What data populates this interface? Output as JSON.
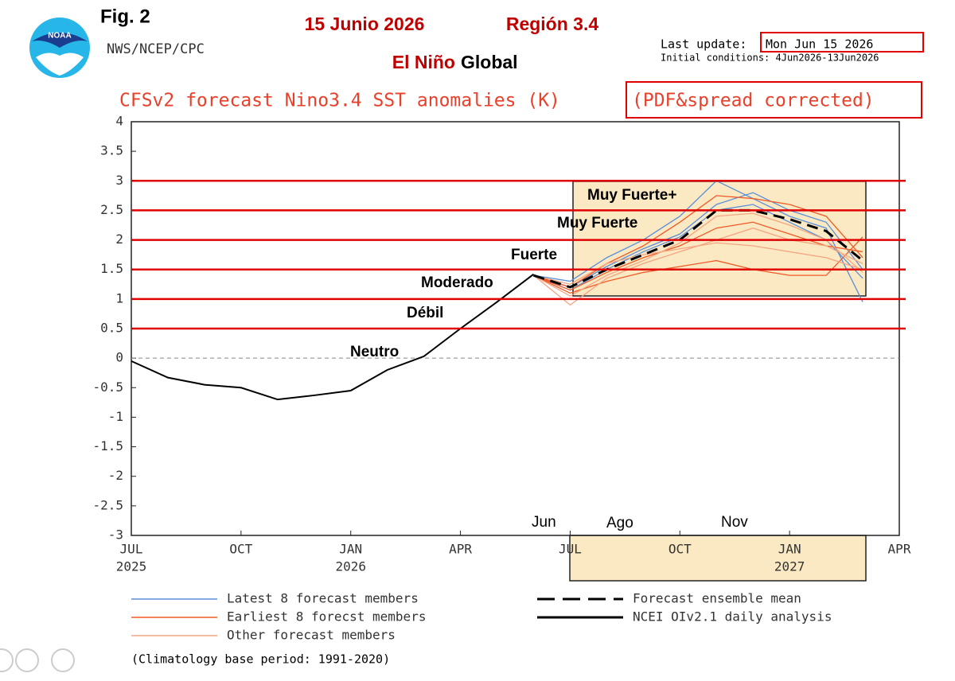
{
  "chart_data": {
    "type": "line",
    "fig_label": "Fig. 2",
    "agency": "NWS/NCEP/CPC",
    "date_heading": "15 Junio 2026",
    "region_heading": "Región 3.4",
    "heading_red": "El Niño",
    "heading_black": "Global",
    "last_update_label": "Last update:",
    "last_update_value": "Mon Jun 15 2026",
    "initial_conditions": "Initial conditions: 4Jun2026-13Jun2026",
    "title": "CFSv2 forecast Nino3.4 SST anomalies (K)",
    "title_suffix": "(PDF&spread corrected)",
    "footnote": "(Climatology base period: 1991-2020)",
    "xlim": [
      0,
      21
    ],
    "xticks": [
      {
        "value": 0,
        "label": "JUL"
      },
      {
        "value": 3,
        "label": "OCT"
      },
      {
        "value": 6,
        "label": "JAN"
      },
      {
        "value": 9,
        "label": "APR"
      },
      {
        "value": 12,
        "label": "JUL"
      },
      {
        "value": 15,
        "label": "OCT"
      },
      {
        "value": 18,
        "label": "JAN"
      },
      {
        "value": 21,
        "label": "APR"
      }
    ],
    "xtick_years": [
      {
        "value": 0,
        "label": "2025"
      },
      {
        "value": 6,
        "label": "2026"
      },
      {
        "value": 18,
        "label": "2027"
      }
    ],
    "ylim": [
      -3,
      4
    ],
    "yticks": [
      -3,
      -2.5,
      -2,
      -1.5,
      -1,
      -0.5,
      0,
      0.5,
      1,
      1.5,
      2,
      2.5,
      3,
      3.5,
      4
    ],
    "zero_line": true,
    "threshold_color": "#e00000",
    "threshold_lines": [
      0.5,
      1,
      1.5,
      2,
      2.5,
      3
    ],
    "category_labels": [
      "Neutro",
      "Débil",
      "Moderado",
      "Fuerte",
      "Muy Fuerte",
      "Muy Fuerte+"
    ],
    "month_annotations": [
      "Jun",
      "Ago",
      "Nov"
    ],
    "series": [
      {
        "name": "Latest 8 forecast members",
        "color": "#5a8fd8",
        "style": "solid",
        "x": [
          11,
          12,
          13,
          14,
          15,
          16,
          17,
          18,
          19,
          20
        ],
        "values": [
          1.4,
          1.3,
          1.7,
          2.0,
          2.4,
          3.0,
          2.7,
          2.4,
          2.2,
          0.95
        ]
      },
      {
        "name": null,
        "color": "#5a8fd8",
        "style": "solid",
        "x": [
          11,
          12,
          13,
          14,
          15,
          16,
          17,
          18,
          19,
          20
        ],
        "values": [
          1.4,
          1.2,
          1.55,
          1.85,
          2.1,
          2.6,
          2.8,
          2.5,
          2.3,
          1.5
        ]
      },
      {
        "name": null,
        "color": "#5a8fd8",
        "style": "solid",
        "x": [
          11,
          12,
          13,
          14,
          15,
          16,
          17,
          18,
          19,
          20
        ],
        "values": [
          1.4,
          1.15,
          1.5,
          1.8,
          2.05,
          2.5,
          2.6,
          2.3,
          2.0,
          1.35
        ]
      },
      {
        "name": "Earliest 8 forecst members",
        "color": "#f05a28",
        "style": "solid",
        "x": [
          11,
          12,
          13,
          14,
          15,
          16,
          17,
          18,
          19,
          20
        ],
        "values": [
          1.4,
          1.1,
          1.3,
          1.45,
          1.55,
          1.65,
          1.5,
          1.4,
          1.4,
          2.05
        ]
      },
      {
        "name": null,
        "color": "#f05a28",
        "style": "solid",
        "x": [
          11,
          12,
          13,
          14,
          15,
          16,
          17,
          18,
          19,
          20
        ],
        "values": [
          1.4,
          1.2,
          1.6,
          1.9,
          2.3,
          2.75,
          2.7,
          2.6,
          2.4,
          1.7
        ]
      },
      {
        "name": null,
        "color": "#f05a28",
        "style": "solid",
        "x": [
          11,
          12,
          13,
          14,
          15,
          16,
          17,
          18,
          19,
          20
        ],
        "values": [
          1.4,
          1.15,
          1.45,
          1.7,
          1.9,
          2.2,
          2.3,
          2.1,
          1.9,
          1.8
        ]
      },
      {
        "name": "Other forecast members",
        "color": "#f4a582",
        "style": "solid",
        "x": [
          11,
          12,
          13,
          14,
          15,
          16,
          17,
          18,
          19,
          20
        ],
        "values": [
          1.4,
          0.9,
          1.35,
          1.6,
          1.8,
          2.0,
          2.2,
          2.0,
          1.9,
          1.6
        ]
      },
      {
        "name": null,
        "color": "#f4a582",
        "style": "solid",
        "x": [
          11,
          12,
          13,
          14,
          15,
          16,
          17,
          18,
          19,
          20
        ],
        "values": [
          1.4,
          1.05,
          1.4,
          1.65,
          1.95,
          2.4,
          2.45,
          2.25,
          2.0,
          1.45
        ]
      },
      {
        "name": null,
        "color": "#f4a582",
        "style": "solid",
        "x": [
          11,
          12,
          13,
          14,
          15,
          16,
          17,
          18,
          19,
          20
        ],
        "values": [
          1.4,
          1.25,
          1.6,
          1.75,
          1.85,
          1.95,
          1.9,
          1.8,
          1.7,
          1.5
        ]
      },
      {
        "name": "Forecast ensemble mean",
        "color": "#000000",
        "style": "dashed",
        "x": [
          11,
          12,
          13,
          14,
          15,
          16,
          17,
          18,
          19,
          20
        ],
        "values": [
          1.4,
          1.2,
          1.5,
          1.75,
          2.0,
          2.5,
          2.5,
          2.35,
          2.15,
          1.65
        ]
      },
      {
        "name": "NCEI OIv2.1 daily analysis",
        "color": "#000000",
        "style": "solid",
        "x": [
          0,
          1,
          2,
          3,
          4,
          5,
          6,
          7,
          8,
          9,
          10,
          11
        ],
        "values": [
          -0.05,
          -0.33,
          -0.45,
          -0.5,
          -0.7,
          -0.63,
          -0.55,
          -0.2,
          0.03,
          0.5,
          0.95,
          1.42
        ]
      }
    ]
  }
}
